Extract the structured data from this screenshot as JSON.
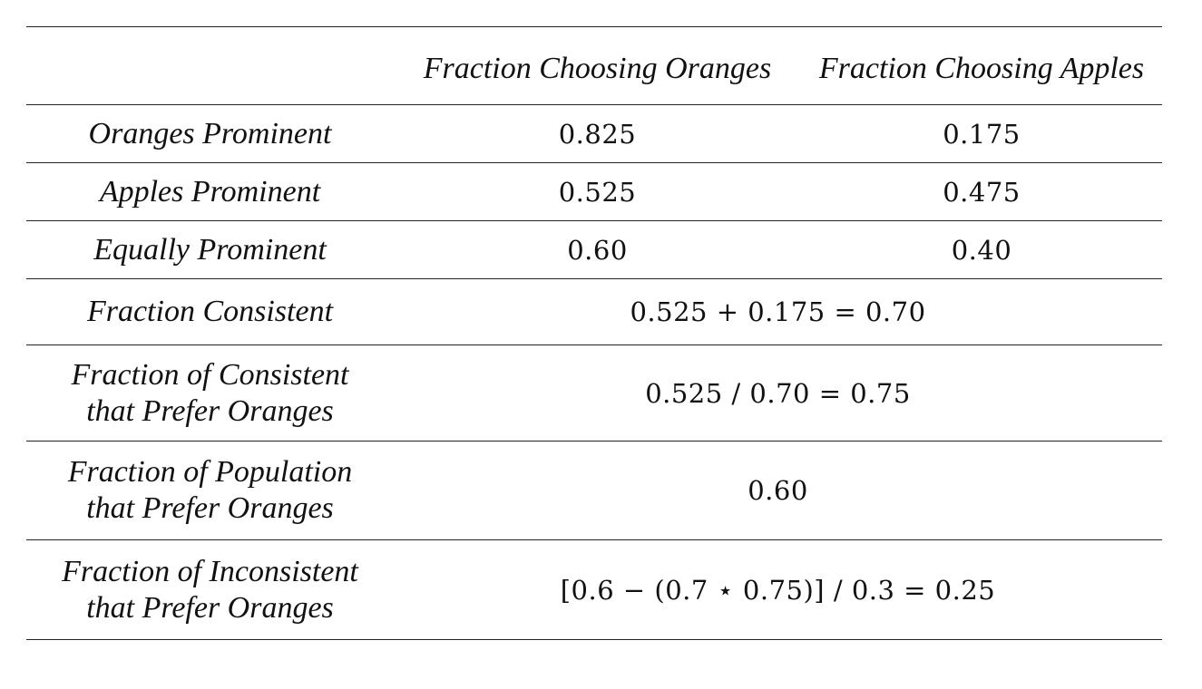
{
  "table": {
    "header": {
      "col1": "Fraction Choosing Oranges",
      "col2": "Fraction Choosing Apples"
    },
    "rows": [
      {
        "label": "Oranges Prominent",
        "oranges": "0.825",
        "apples": "0.175"
      },
      {
        "label": "Apples Prominent",
        "oranges": "0.525",
        "apples": "0.475"
      },
      {
        "label": "Equally Prominent",
        "oranges": "0.60",
        "apples": "0.40"
      }
    ],
    "summary": [
      {
        "label_line1": "Fraction Consistent",
        "label_line2": "",
        "value": "0.525 + 0.175 = 0.70"
      },
      {
        "label_line1": "Fraction of Consistent",
        "label_line2": "that Prefer Oranges",
        "value": "0.525 / 0.70 = 0.75"
      },
      {
        "label_line1": "Fraction of Population",
        "label_line2": "that Prefer Oranges",
        "value": "0.60"
      },
      {
        "label_line1": "Fraction of Inconsistent",
        "label_line2": "that Prefer Oranges",
        "value": "[0.6 − (0.7 ⋆ 0.75)] / 0.3 = 0.25"
      }
    ]
  }
}
